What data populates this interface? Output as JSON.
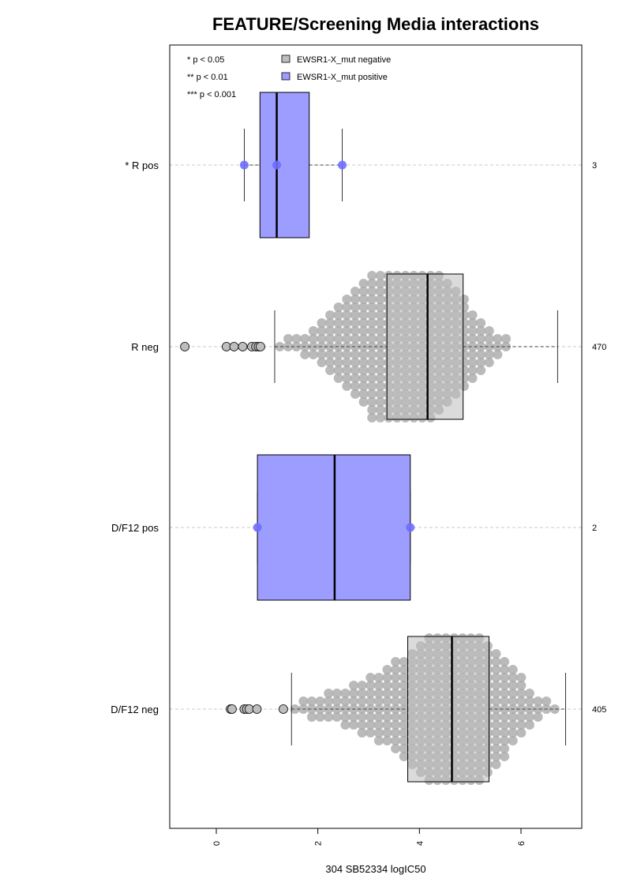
{
  "chart_data": {
    "type": "box",
    "title": "FEATURE/Screening Media interactions",
    "xlabel": "304 SB52334 logIC50",
    "xlim": [
      -1.1,
      7.0
    ],
    "x_ticks": [
      0,
      2,
      4,
      6
    ],
    "x_tick_labels": [
      "0",
      "2",
      "4",
      "6"
    ],
    "orientation": "horizontal",
    "grid": "dashed line per category",
    "legend_position": "top-left",
    "legend": [
      {
        "label": "EWSR1-X_mut negative",
        "color": "#bebebe"
      },
      {
        "label": "EWSR1-X_mut positive",
        "color": "#9d9dff"
      }
    ],
    "significance_legend": [
      "* p < 0.05",
      "** p < 0.01",
      "*** p < 0.001"
    ],
    "categories": [
      {
        "label": "* R pos",
        "count": "3",
        "group": "positive",
        "q1": 0.86,
        "median": 1.19,
        "q3": 1.83,
        "whisker_low": 0.55,
        "whisker_high": 2.48,
        "points": [
          0.55,
          1.19,
          2.48
        ]
      },
      {
        "label": "R neg",
        "count": "470",
        "group": "negative",
        "q1": 3.36,
        "median": 4.16,
        "q3": 4.86,
        "whisker_low": 1.15,
        "whisker_high": 6.72,
        "outliers": [
          -0.62,
          0.2,
          0.35,
          0.52,
          0.7,
          0.78,
          0.83,
          0.87
        ],
        "beeswarm": {
          "bin_width": 0.165,
          "counts": [
            1,
            2,
            2,
            3,
            4,
            6,
            8,
            10,
            12,
            14,
            16,
            19,
            21,
            22,
            22,
            22,
            22,
            22,
            20,
            18,
            16,
            14,
            12,
            9,
            7,
            5,
            3,
            2
          ],
          "bin_start": 1.25
        }
      },
      {
        "label": "D/F12 pos",
        "count": "2",
        "group": "positive",
        "q1": 0.81,
        "median": 2.33,
        "q3": 3.82,
        "whisker_low": 0.81,
        "whisker_high": 3.82,
        "points": [
          0.81,
          3.82
        ]
      },
      {
        "label": "D/F12 neg",
        "count": "405",
        "group": "negative",
        "q1": 3.77,
        "median": 4.64,
        "q3": 5.37,
        "whisker_low": 1.48,
        "whisker_high": 6.88,
        "outliers": [
          0.28,
          0.31,
          0.55,
          0.6,
          0.65,
          0.8,
          1.32
        ],
        "beeswarm": {
          "bin_width": 0.165,
          "counts": [
            1,
            2,
            3,
            3,
            4,
            4,
            5,
            6,
            7,
            8,
            9,
            10,
            12,
            13,
            15,
            17,
            19,
            20,
            21,
            21,
            21,
            20,
            19,
            17,
            15,
            13,
            10,
            8,
            5,
            3,
            2,
            1
          ],
          "bin_start": 1.55
        }
      }
    ]
  }
}
